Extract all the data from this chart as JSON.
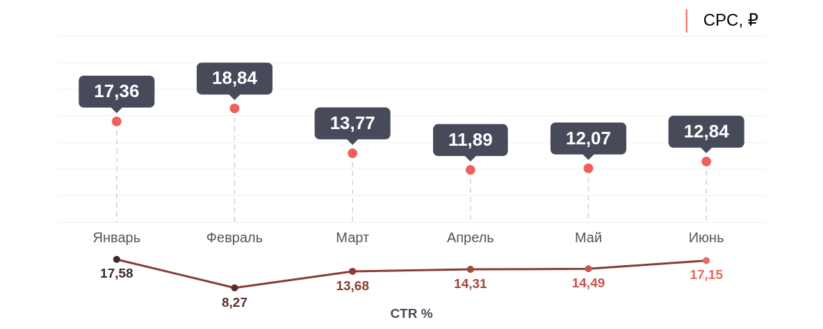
{
  "chart_data": [
    {
      "type": "lollipop",
      "categories": [
        "Январь",
        "Февраль",
        "Март",
        "Апрель",
        "Май",
        "Июнь"
      ],
      "legend": "top right",
      "grid": "y",
      "tick_labels": "x",
      "ylim": [
        6,
        27
      ],
      "yticks": [
        {
          "value": 6,
          "label": null
        },
        {
          "value": 9,
          "label": null
        },
        {
          "value": 12,
          "label": null
        },
        {
          "value": 15,
          "label": null
        },
        {
          "value": 18,
          "label": null
        },
        {
          "value": 21,
          "label": null
        },
        {
          "value": 24,
          "label": null
        },
        {
          "value": 27,
          "label": null
        }
      ],
      "series": [
        {
          "name": "CPC, ₽",
          "color": "#f0605a",
          "values": [
            17.36,
            18.84,
            13.77,
            11.89,
            12.07,
            12.84
          ],
          "value_labels": [
            "17,36",
            "18,84",
            "13,77",
            "11,89",
            "12,07",
            "12,84"
          ]
        }
      ]
    },
    {
      "type": "line",
      "categories": [
        null,
        null,
        null,
        null,
        null,
        null
      ],
      "tick_labels": false,
      "xlabel": "CTR %",
      "marker": "circle",
      "series": [
        {
          "color": "#8a3a35",
          "colors": [
            "#3d2b2b",
            "#5a2e2b",
            "#8b3a35",
            "#a8453e",
            "#c8554c",
            "#e86a5e"
          ],
          "values": [
            17.58,
            8.27,
            13.68,
            14.31,
            14.49,
            17.15
          ],
          "value_labels": [
            "17,58",
            "8,27",
            "13,68",
            "14,31",
            "14,49",
            "17,15"
          ]
        }
      ]
    }
  ]
}
